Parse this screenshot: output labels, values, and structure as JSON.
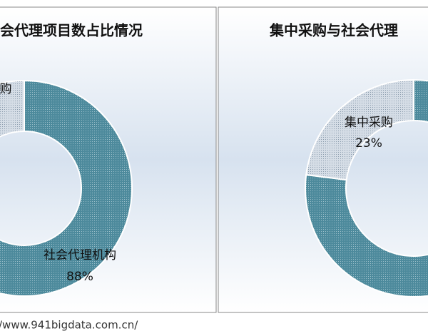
{
  "charts": [
    {
      "chart_data": {
        "type": "pie",
        "title": "会代理项目数占比情况",
        "categories": [
          "社会代理机构",
          "购"
        ],
        "values": [
          88,
          12
        ],
        "value_labels": [
          "88%",
          null
        ],
        "colors": [
          "#4d8a9c",
          "#d5dde6"
        ]
      }
    },
    {
      "chart_data": {
        "type": "pie",
        "title": "集中采购与社会代理",
        "categories": [
          null,
          "集中采购"
        ],
        "values": [
          77,
          23
        ],
        "value_labels": [
          null,
          "23%"
        ],
        "colors": [
          "#4d8a9c",
          "#d5dde6"
        ]
      }
    }
  ],
  "source": "/www.941bigdata.com.cn/"
}
